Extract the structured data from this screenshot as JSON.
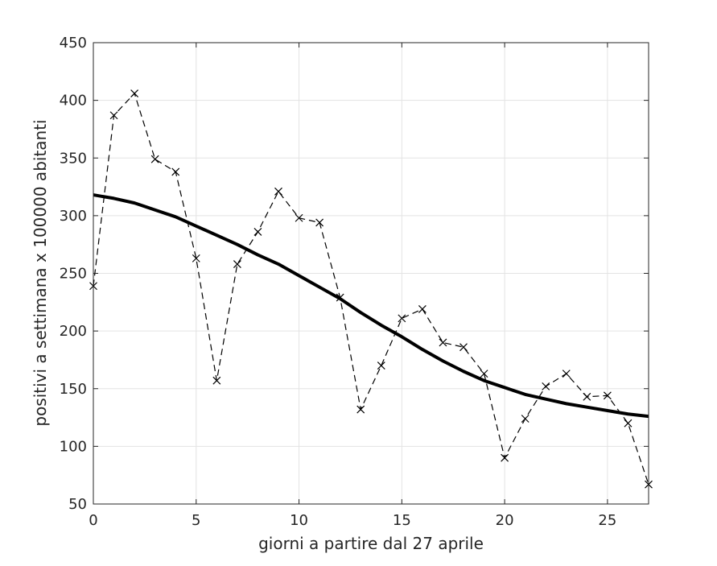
{
  "chart_data": {
    "type": "line",
    "xlabel": "giorni a partire dal 27 aprile",
    "ylabel": "positivi a settimana x 100000 abitanti",
    "xlim": [
      0,
      27
    ],
    "ylim": [
      50,
      450
    ],
    "xticks": [
      0,
      5,
      10,
      15,
      20,
      25
    ],
    "yticks": [
      50,
      100,
      150,
      200,
      250,
      300,
      350,
      400,
      450
    ],
    "grid": true,
    "series": [
      {
        "style": "dashed-x-markers",
        "color": "#000000",
        "x": [
          0,
          1,
          2,
          3,
          4,
          5,
          6,
          7,
          8,
          9,
          10,
          11,
          12,
          13,
          14,
          15,
          16,
          17,
          18,
          19,
          20,
          21,
          22,
          23,
          24,
          25,
          26,
          27
        ],
        "values": [
          239,
          387,
          406,
          349,
          338,
          263,
          157,
          258,
          286,
          321,
          298,
          294,
          229,
          132,
          170,
          211,
          219,
          190,
          186,
          163,
          90,
          124,
          152,
          163,
          143,
          144,
          120,
          67
        ]
      },
      {
        "style": "solid-thick",
        "color": "#000000",
        "x": [
          0,
          1,
          2,
          3,
          4,
          5,
          6,
          7,
          8,
          9,
          10,
          11,
          12,
          13,
          14,
          15,
          16,
          17,
          18,
          19,
          20,
          21,
          22,
          23,
          24,
          25,
          26,
          27
        ],
        "values": [
          318,
          315,
          311,
          305,
          299,
          291,
          283,
          275,
          266,
          258,
          248,
          238,
          228,
          216,
          205,
          195,
          184,
          174,
          165,
          157,
          151,
          145,
          141,
          137,
          134,
          131,
          128,
          126
        ]
      }
    ]
  }
}
